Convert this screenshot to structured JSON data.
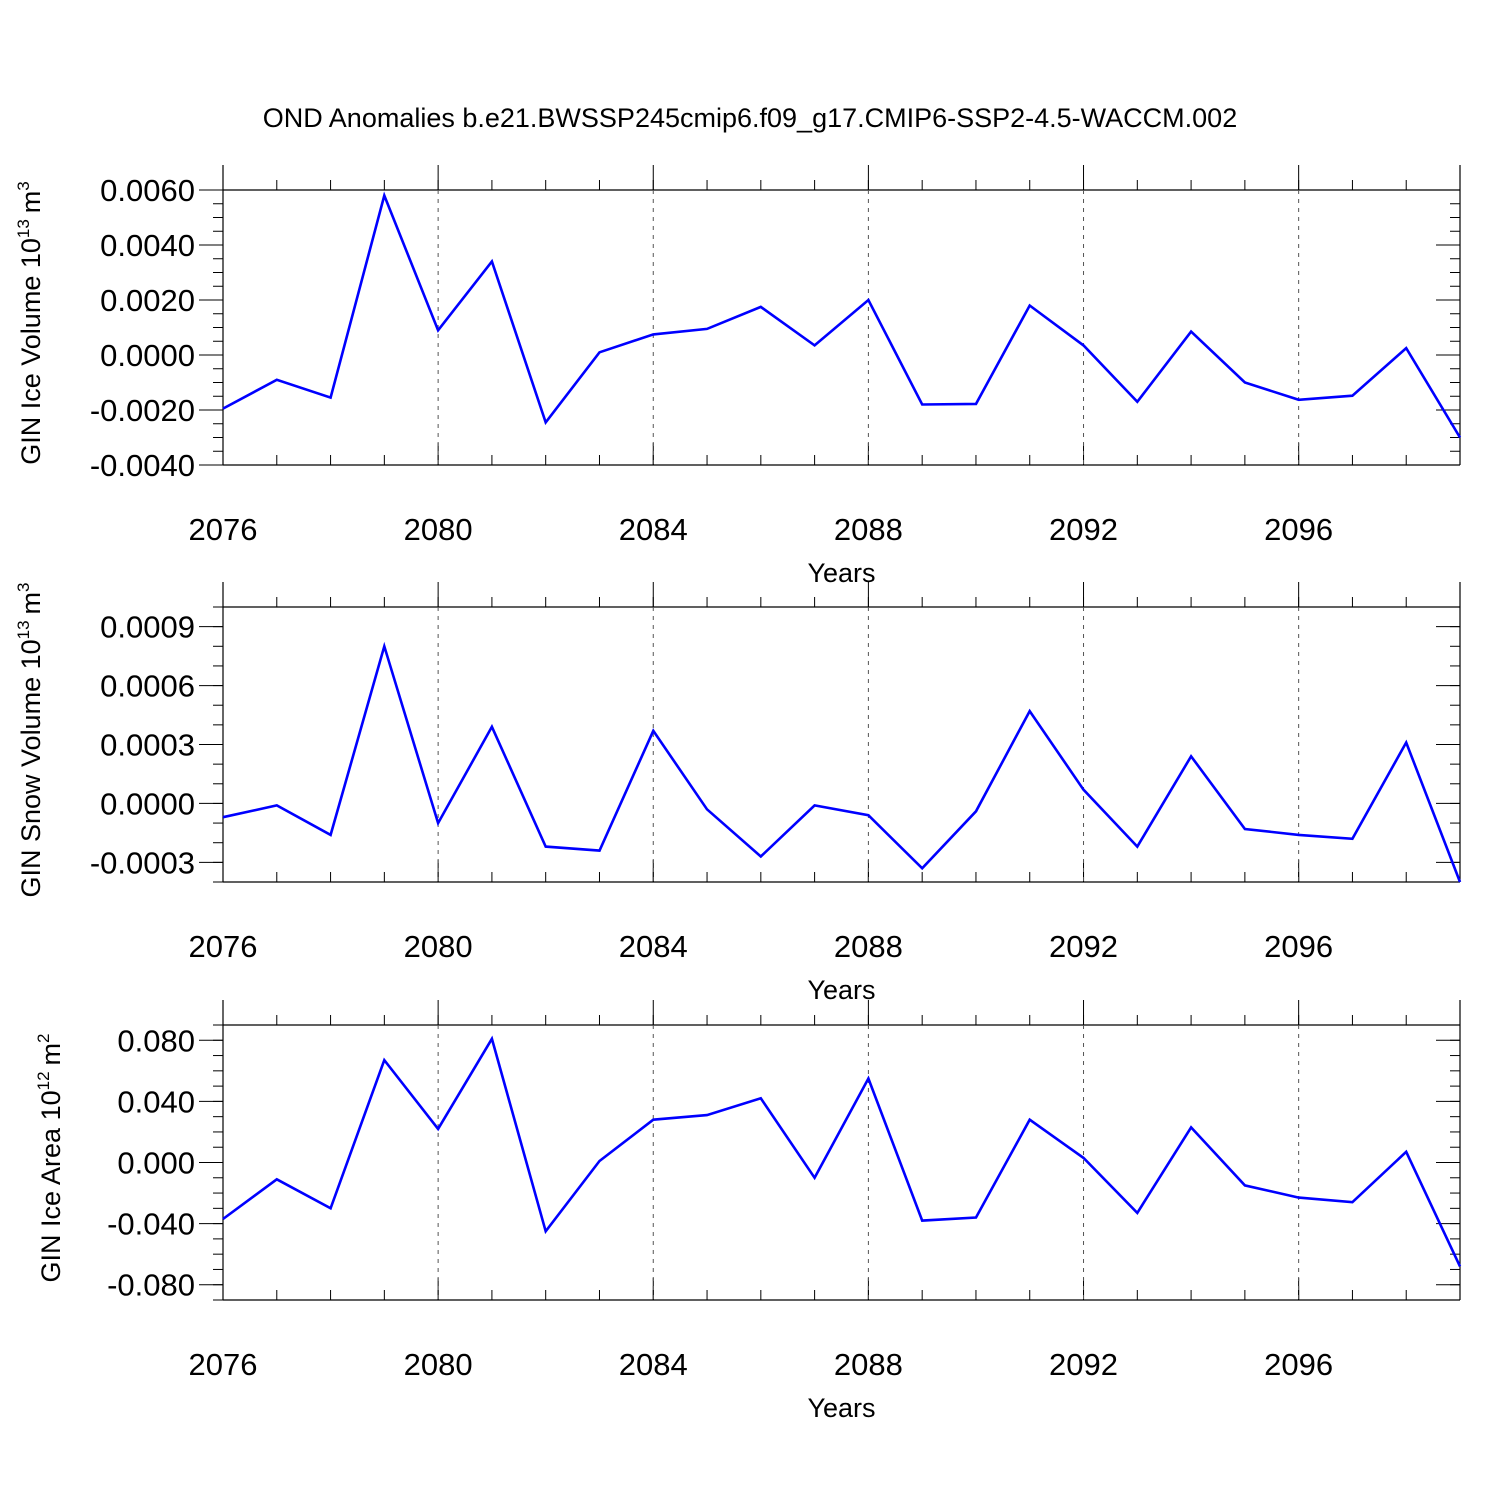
{
  "title": "OND Anomalies b.e21.BWSSP245cmip6.f09_g17.CMIP6-SSP2-4.5-WACCM.002",
  "colors": {
    "line": "#0000ff",
    "axis": "#000000",
    "grid": "#555555"
  },
  "chart_data": [
    {
      "type": "line",
      "xlabel": "Years",
      "ylabel_text": "GIN Ice Volume 10",
      "ylabel_exp": "13",
      "ylabel_unit": "m",
      "ylabel_unit_exp": "3",
      "xlim": [
        2076,
        2099
      ],
      "ylim": [
        -0.004,
        0.006
      ],
      "x_ticks": [
        2076,
        2080,
        2084,
        2088,
        2092,
        2096
      ],
      "x_tick_labels": [
        "2076",
        "2080",
        "2084",
        "2088",
        "2092",
        "2096"
      ],
      "y_ticks": [
        -0.004,
        -0.002,
        0.0,
        0.002,
        0.004,
        0.006
      ],
      "y_tick_labels": [
        "-0.0040",
        "-0.0020",
        "0.0000",
        "0.0020",
        "0.0040",
        "0.0060"
      ],
      "y_minor_step": 0.0005,
      "x": [
        2076,
        2077,
        2078,
        2079,
        2080,
        2081,
        2082,
        2083,
        2084,
        2085,
        2086,
        2087,
        2088,
        2089,
        2090,
        2091,
        2092,
        2093,
        2094,
        2095,
        2096,
        2097,
        2098,
        2099
      ],
      "y": [
        -0.00195,
        -0.0009,
        -0.00155,
        0.0058,
        0.0009,
        0.0034,
        -0.00245,
        0.0001,
        0.00075,
        0.00095,
        0.00175,
        0.00035,
        0.002,
        -0.0018,
        -0.00178,
        0.0018,
        0.00035,
        -0.0017,
        0.00085,
        -0.001,
        -0.00163,
        -0.00148,
        0.00025,
        -0.003
      ]
    },
    {
      "type": "line",
      "xlabel": "Years",
      "ylabel_text": "GIN Snow Volume 10",
      "ylabel_exp": "13",
      "ylabel_unit": "m",
      "ylabel_unit_exp": "3",
      "xlim": [
        2076,
        2099
      ],
      "ylim": [
        -0.0004,
        0.001
      ],
      "x_ticks": [
        2076,
        2080,
        2084,
        2088,
        2092,
        2096
      ],
      "x_tick_labels": [
        "2076",
        "2080",
        "2084",
        "2088",
        "2092",
        "2096"
      ],
      "y_ticks": [
        -0.0003,
        0.0,
        0.0003,
        0.0006,
        0.0009
      ],
      "y_tick_labels": [
        "-0.0003",
        "0.0000",
        "0.0003",
        "0.0006",
        "0.0009"
      ],
      "y_minor_step": 0.0001,
      "x": [
        2076,
        2077,
        2078,
        2079,
        2080,
        2081,
        2082,
        2083,
        2084,
        2085,
        2086,
        2087,
        2088,
        2089,
        2090,
        2091,
        2092,
        2093,
        2094,
        2095,
        2096,
        2097,
        2098,
        2099
      ],
      "y": [
        -7e-05,
        -1e-05,
        -0.00016,
        0.0008,
        -0.0001,
        0.00039,
        -0.00022,
        -0.00024,
        0.00037,
        -3e-05,
        -0.00027,
        -1e-05,
        -6e-05,
        -0.00033,
        -4e-05,
        0.00047,
        7e-05,
        -0.00022,
        0.00024,
        -0.00013,
        -0.00016,
        -0.00018,
        0.00031,
        -0.0004
      ]
    },
    {
      "type": "line",
      "xlabel": "Years",
      "ylabel_text": "GIN Ice Area 10",
      "ylabel_exp": "12",
      "ylabel_unit": "m",
      "ylabel_unit_exp": "2",
      "xlim": [
        2076,
        2099
      ],
      "ylim": [
        -0.09,
        0.09
      ],
      "x_ticks": [
        2076,
        2080,
        2084,
        2088,
        2092,
        2096
      ],
      "x_tick_labels": [
        "2076",
        "2080",
        "2084",
        "2088",
        "2092",
        "2096"
      ],
      "y_ticks": [
        -0.08,
        -0.04,
        0.0,
        0.04,
        0.08
      ],
      "y_tick_labels": [
        "-0.080",
        "-0.040",
        "0.000",
        "0.040",
        "0.080"
      ],
      "y_minor_step": 0.01,
      "x": [
        2076,
        2077,
        2078,
        2079,
        2080,
        2081,
        2082,
        2083,
        2084,
        2085,
        2086,
        2087,
        2088,
        2089,
        2090,
        2091,
        2092,
        2093,
        2094,
        2095,
        2096,
        2097,
        2098,
        2099
      ],
      "y": [
        -0.037,
        -0.011,
        -0.03,
        0.067,
        0.022,
        0.081,
        -0.045,
        0.001,
        0.028,
        0.031,
        0.042,
        -0.01,
        0.055,
        -0.038,
        -0.036,
        0.028,
        0.003,
        -0.033,
        0.023,
        -0.015,
        -0.023,
        -0.026,
        0.007,
        -0.068
      ]
    }
  ]
}
